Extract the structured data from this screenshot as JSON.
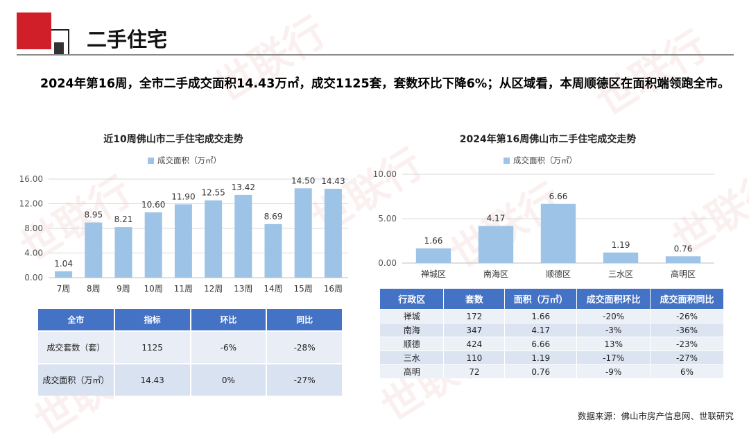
{
  "header": {
    "title": "二手住宅"
  },
  "summary": "2024年第16周，全市二手成交面积14.43万㎡，成交1125套，套数环比下降6%；从区域看，本周顺德区在面积端领跑全市。",
  "watermark": "世联行",
  "colors": {
    "accent_red": "#d11f2a",
    "bar": "#9dc3e6",
    "table_header": "#4472c4",
    "table_row": "#d9e2f1"
  },
  "chart_data": [
    {
      "type": "bar",
      "title": "近10周佛山市二手住宅成交走势",
      "legend": "成交面积（万㎡）",
      "legend_position": "top",
      "categories": [
        "7周",
        "8周",
        "9周",
        "10周",
        "11周",
        "12周",
        "13周",
        "14周",
        "15周",
        "16周"
      ],
      "series": [
        {
          "name": "成交面积（万㎡）",
          "values": [
            1.04,
            8.95,
            8.21,
            10.6,
            11.9,
            12.55,
            13.42,
            8.69,
            14.5,
            14.43
          ]
        }
      ],
      "ylim": [
        0,
        16
      ],
      "yticks": [
        "0.00",
        "4.00",
        "8.00",
        "12.00",
        "16.00"
      ],
      "grid": true
    },
    {
      "type": "bar",
      "title": "2024年第16周佛山市二手住宅成交走势",
      "legend": "成交面积（万㎡）",
      "legend_position": "top",
      "categories": [
        "禅城区",
        "南海区",
        "顺德区",
        "三水区",
        "高明区"
      ],
      "series": [
        {
          "name": "成交面积（万㎡）",
          "values": [
            1.66,
            4.17,
            6.66,
            1.19,
            0.76
          ]
        }
      ],
      "ylim": [
        0,
        10
      ],
      "yticks": [
        "0.00",
        "5.00",
        "10.00"
      ],
      "grid": true
    }
  ],
  "table1": {
    "headers": [
      "全市",
      "指标",
      "环比",
      "同比"
    ],
    "rows": [
      [
        "成交套数（套）",
        "1125",
        "-6%",
        "-28%"
      ],
      [
        "成交面积（万㎡）",
        "14.43",
        "0%",
        "-27%"
      ]
    ]
  },
  "table2": {
    "headers": [
      "行政区",
      "套数",
      "面积（万㎡）",
      "成交面积环比",
      "成交面积同比"
    ],
    "rows": [
      [
        "禅城",
        "172",
        "1.66",
        "-20%",
        "-26%"
      ],
      [
        "南海",
        "347",
        "4.17",
        "-3%",
        "-36%"
      ],
      [
        "顺德",
        "424",
        "6.66",
        "13%",
        "-23%"
      ],
      [
        "三水",
        "110",
        "1.19",
        "-17%",
        "-27%"
      ],
      [
        "高明",
        "72",
        "0.76",
        "-9%",
        "6%"
      ]
    ]
  },
  "footer": {
    "source": "数据来源：佛山市房产信息网、世联研究"
  }
}
